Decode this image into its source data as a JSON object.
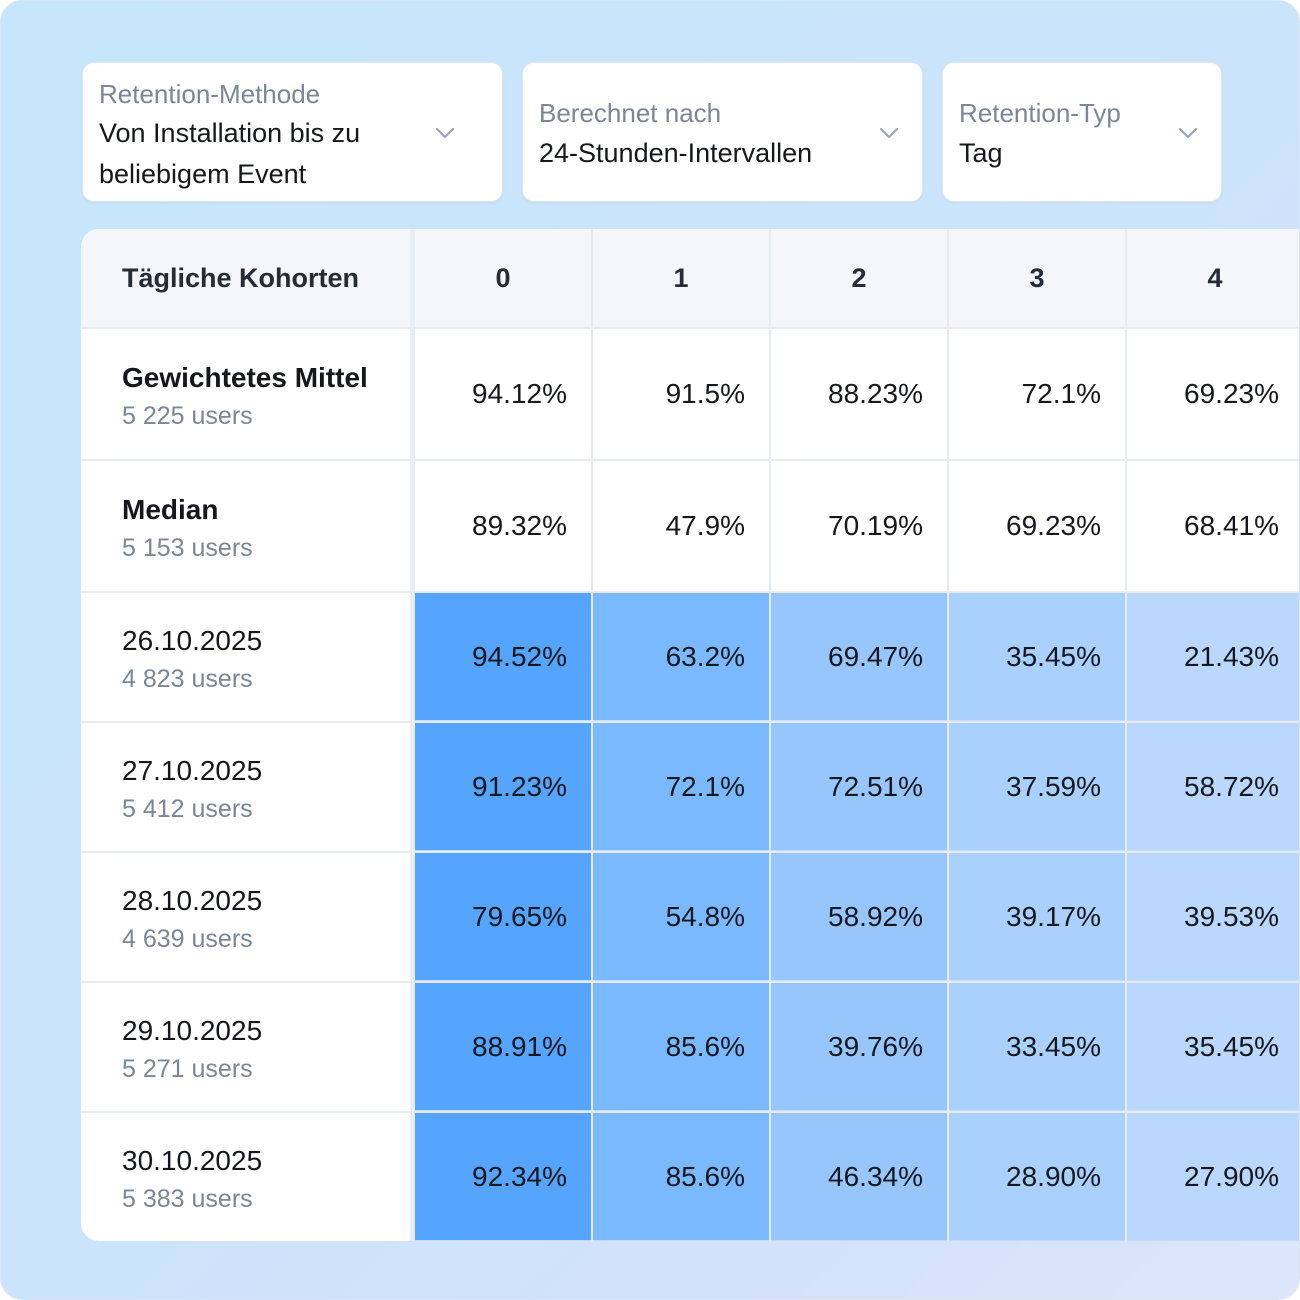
{
  "filters": [
    {
      "label": "Retention-Methode",
      "value_lines": [
        "Von Installation bis zu",
        "beliebigem Event"
      ],
      "icon": "chevron-down-icon"
    },
    {
      "label": "Berechnet nach",
      "value_lines": [
        "24-Stunden-Intervallen"
      ],
      "icon": "chevron-down-icon"
    },
    {
      "label": "Retention-Typ",
      "value_lines": [
        "Tag"
      ],
      "icon": "chevron-down-icon"
    }
  ],
  "table": {
    "header_label": "Tägliche Kohorten",
    "columns": [
      "0",
      "1",
      "2",
      "3",
      "4"
    ],
    "summary_rows": [
      {
        "title": "Gewichtetes Mittel",
        "users": "5 225 users",
        "values": [
          "94.12%",
          "91.5%",
          "88.23%",
          "72.1%",
          "69.23%"
        ]
      },
      {
        "title": "Median",
        "users": "5 153 users",
        "values": [
          "89.32%",
          "47.9%",
          "70.19%",
          "69.23%",
          "68.41%"
        ]
      }
    ],
    "cohort_rows": [
      {
        "title": "26.10.2025",
        "users": "4 823 users",
        "values": [
          "94.52%",
          "63.2%",
          "69.47%",
          "35.45%",
          "21.43%"
        ]
      },
      {
        "title": "27.10.2025",
        "users": "5 412 users",
        "values": [
          "91.23%",
          "72.1%",
          "72.51%",
          "37.59%",
          "58.72%"
        ]
      },
      {
        "title": "28.10.2025",
        "users": "4 639 users",
        "values": [
          "79.65%",
          "54.8%",
          "58.92%",
          "39.17%",
          "39.53%"
        ]
      },
      {
        "title": "29.10.2025",
        "users": "5 271 users",
        "values": [
          "88.91%",
          "85.6%",
          "39.76%",
          "33.45%",
          "35.45%"
        ]
      },
      {
        "title": "30.10.2025",
        "users": "5 383 users",
        "values": [
          "92.34%",
          "85.6%",
          "46.34%",
          "28.90%",
          "27.90%"
        ]
      }
    ],
    "column_shades": [
      "#55a4fd",
      "#7ab9fd",
      "#97c6fd",
      "#aad0fd",
      "#bad8fd"
    ]
  }
}
